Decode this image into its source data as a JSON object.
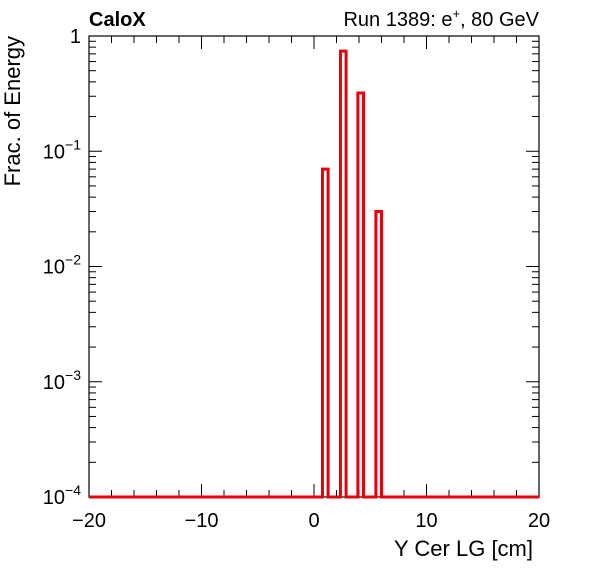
{
  "header": {
    "experiment": "CaloX",
    "run_text": "Run 1389: e",
    "run_sup": "+",
    "run_suffix": ", 80 GeV"
  },
  "chart_data": {
    "type": "histogram",
    "xlabel": "Y Cer LG [cm]",
    "ylabel": "Frac. of Energy",
    "xlim": [
      -20,
      20
    ],
    "ylim": [
      0.0001,
      1
    ],
    "y_scale": "log",
    "x_ticks": [
      {
        "value": -20,
        "label": "−20"
      },
      {
        "value": -10,
        "label": "−10"
      },
      {
        "value": 0,
        "label": "0"
      },
      {
        "value": 10,
        "label": "10"
      },
      {
        "value": 20,
        "label": "20"
      }
    ],
    "y_ticks": [
      {
        "value": 1,
        "base": "1",
        "exp": ""
      },
      {
        "value": 0.1,
        "base": "10",
        "exp": "−1"
      },
      {
        "value": 0.01,
        "base": "10",
        "exp": "−2"
      },
      {
        "value": 0.001,
        "base": "10",
        "exp": "−3"
      },
      {
        "value": 0.0001,
        "base": "10",
        "exp": "−4"
      }
    ],
    "color": "#e8000b",
    "bins": [
      {
        "x0": 0.75,
        "x1": 1.25,
        "y": 0.07
      },
      {
        "x0": 2.35,
        "x1": 2.85,
        "y": 0.74
      },
      {
        "x0": 3.9,
        "x1": 4.4,
        "y": 0.32
      },
      {
        "x0": 5.5,
        "x1": 6.0,
        "y": 0.03
      }
    ],
    "baseline": 0.0001
  }
}
